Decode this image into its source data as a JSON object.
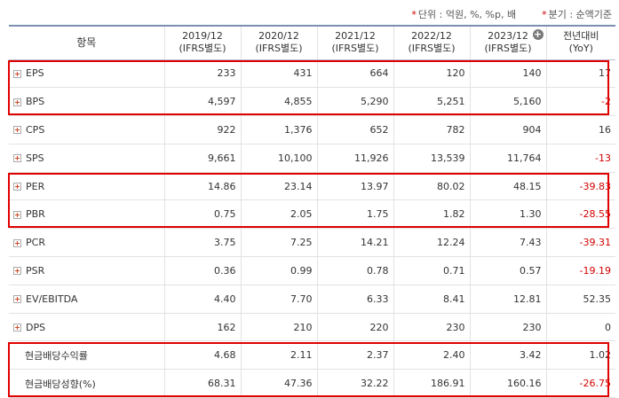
{
  "notes": {
    "unit_star": "*",
    "unit": "단위 : 억원, %, %p, 배",
    "period_star": "*",
    "period": "분기 : 순액기준"
  },
  "header": {
    "item": "항목",
    "periods": [
      {
        "year": "2019/12",
        "std": "(IFRS별도)"
      },
      {
        "year": "2020/12",
        "std": "(IFRS별도)"
      },
      {
        "year": "2021/12",
        "std": "(IFRS별도)"
      },
      {
        "year": "2022/12",
        "std": "(IFRS별도)"
      },
      {
        "year": "2023/12",
        "std": "(IFRS별도)"
      }
    ],
    "yoy_line1": "전년대비",
    "yoy_line2": "(YoY)",
    "expand_icon": "plus-circle-icon"
  },
  "rows": [
    {
      "label": "EPS",
      "expandable": true,
      "values": [
        "233",
        "431",
        "664",
        "120",
        "140"
      ],
      "yoy": "17",
      "yoy_negative": false
    },
    {
      "label": "BPS",
      "expandable": true,
      "values": [
        "4,597",
        "4,855",
        "5,290",
        "5,251",
        "5,160"
      ],
      "yoy": "-2",
      "yoy_negative": true
    },
    {
      "label": "CPS",
      "expandable": true,
      "values": [
        "922",
        "1,376",
        "652",
        "782",
        "904"
      ],
      "yoy": "16",
      "yoy_negative": false
    },
    {
      "label": "SPS",
      "expandable": true,
      "values": [
        "9,661",
        "10,100",
        "11,926",
        "13,539",
        "11,764"
      ],
      "yoy": "-13",
      "yoy_negative": true
    },
    {
      "label": "PER",
      "expandable": true,
      "values": [
        "14.86",
        "23.14",
        "13.97",
        "80.02",
        "48.15"
      ],
      "yoy": "-39.83",
      "yoy_negative": true
    },
    {
      "label": "PBR",
      "expandable": true,
      "values": [
        "0.75",
        "2.05",
        "1.75",
        "1.82",
        "1.30"
      ],
      "yoy": "-28.55",
      "yoy_negative": true
    },
    {
      "label": "PCR",
      "expandable": true,
      "values": [
        "3.75",
        "7.25",
        "14.21",
        "12.24",
        "7.43"
      ],
      "yoy": "-39.31",
      "yoy_negative": true
    },
    {
      "label": "PSR",
      "expandable": true,
      "values": [
        "0.36",
        "0.99",
        "0.78",
        "0.71",
        "0.57"
      ],
      "yoy": "-19.19",
      "yoy_negative": true
    },
    {
      "label": "EV/EBITDA",
      "expandable": true,
      "values": [
        "4.40",
        "7.70",
        "6.33",
        "8.41",
        "12.81"
      ],
      "yoy": "52.35",
      "yoy_negative": false
    },
    {
      "label": "DPS",
      "expandable": true,
      "values": [
        "162",
        "210",
        "220",
        "230",
        "230"
      ],
      "yoy": "0",
      "yoy_negative": false
    },
    {
      "label": "현금배당수익률",
      "expandable": false,
      "values": [
        "4.68",
        "2.11",
        "2.37",
        "2.40",
        "3.42"
      ],
      "yoy": "1.02",
      "yoy_negative": false
    },
    {
      "label": "현금배당성향(%)",
      "expandable": false,
      "values": [
        "68.31",
        "47.36",
        "32.22",
        "186.91",
        "160.16"
      ],
      "yoy": "-26.75",
      "yoy_negative": true
    }
  ],
  "colors": {
    "highlight": "#e00000",
    "negative": "#d20000",
    "header_border": "#7d8fae"
  }
}
